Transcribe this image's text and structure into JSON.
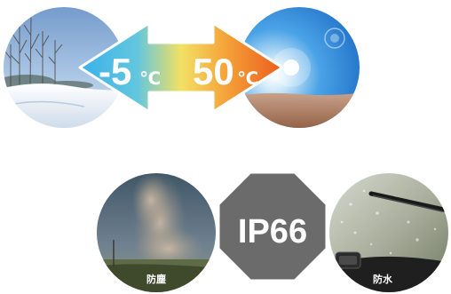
{
  "temperature": {
    "low_value": "-5",
    "low_unit": "℃",
    "high_value": "50",
    "high_unit": "℃"
  },
  "protection": {
    "rating_label": "IP66",
    "dust_caption": "防塵",
    "water_caption": "防水"
  },
  "colors": {
    "arrow_cold": "#48b8ea",
    "arrow_mid": "#f3e06a",
    "arrow_hot": "#ef6a1e",
    "octagon": "#6a6a6a",
    "text_white": "#ffffff"
  },
  "icons": {
    "snow_scene": "snow-landscape-icon",
    "desert_scene": "desert-sun-icon",
    "dust_scene": "dust-storm-icon",
    "rain_scene": "rain-windshield-icon"
  }
}
